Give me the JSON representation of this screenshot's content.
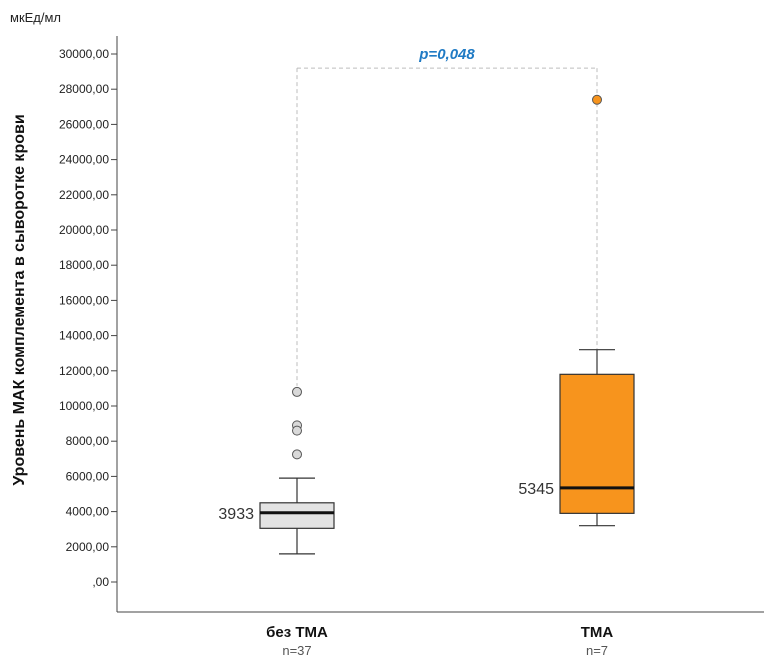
{
  "chart_data": {
    "type": "boxplot",
    "unit_label": "мкЕд/мл",
    "ylabel": "Уровень МАК комплемента в сыворотке крови",
    "ylim": [
      0,
      31600
    ],
    "yticks": [
      {
        "value": 0,
        "label": ",00"
      },
      {
        "value": 2000,
        "label": "2000,00"
      },
      {
        "value": 4000,
        "label": "4000,00"
      },
      {
        "value": 6000,
        "label": "6000,00"
      },
      {
        "value": 8000,
        "label": "8000,00"
      },
      {
        "value": 10000,
        "label": "10000,00"
      },
      {
        "value": 12000,
        "label": "12000,00"
      },
      {
        "value": 14000,
        "label": "14000,00"
      },
      {
        "value": 16000,
        "label": "16000,00"
      },
      {
        "value": 18000,
        "label": "18000,00"
      },
      {
        "value": 20000,
        "label": "20000,00"
      },
      {
        "value": 22000,
        "label": "22000,00"
      },
      {
        "value": 24000,
        "label": "24000,00"
      },
      {
        "value": 26000,
        "label": "26000,00"
      },
      {
        "value": 28000,
        "label": "28000,00"
      },
      {
        "value": 30000,
        "label": "30000,00"
      }
    ],
    "groups": [
      {
        "category": "без ТМА",
        "n_label": "n=37",
        "whisker_low": 1600,
        "q1": 3050,
        "median": 3933,
        "median_label": "3933",
        "q3": 4500,
        "whisker_high": 5900,
        "outliers": [
          10800,
          8900,
          8600,
          7250
        ],
        "box_color": "#e3e3e3",
        "outlier_color": "#d9d9d9"
      },
      {
        "category": "ТМА",
        "n_label": "n=7",
        "whisker_low": 3200,
        "q1": 3900,
        "median": 5345,
        "median_label": "5345",
        "q3": 11800,
        "whisker_high": 13200,
        "outliers": [
          27400
        ],
        "box_color": "#f7941d",
        "outlier_color": "#f7941d"
      }
    ],
    "annotation": {
      "text": "p=0,048",
      "color": "#1f7ac4",
      "bracket_level": 29200
    }
  }
}
